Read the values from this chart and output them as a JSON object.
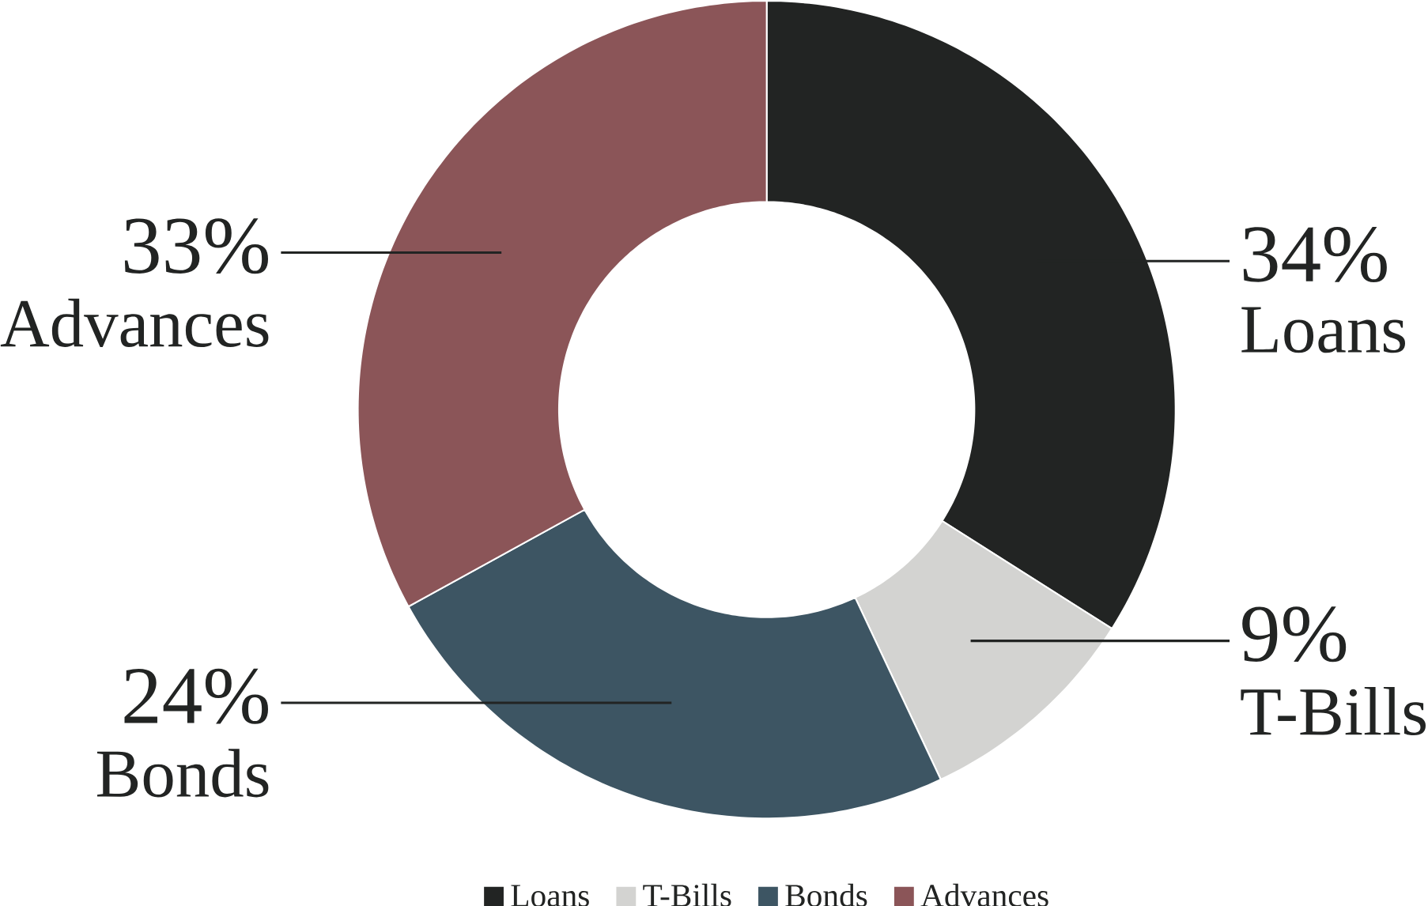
{
  "chart_data": {
    "type": "donut",
    "categories": [
      "Loans",
      "T-Bills",
      "Bonds",
      "Advances"
    ],
    "values": [
      34,
      9,
      24,
      33
    ],
    "colors": [
      "#222423",
      "#d3d3d1",
      "#3d5563",
      "#8b5558"
    ],
    "value_labels": [
      "34%",
      "9%",
      "24%",
      "33%"
    ],
    "legend": "bottom"
  }
}
